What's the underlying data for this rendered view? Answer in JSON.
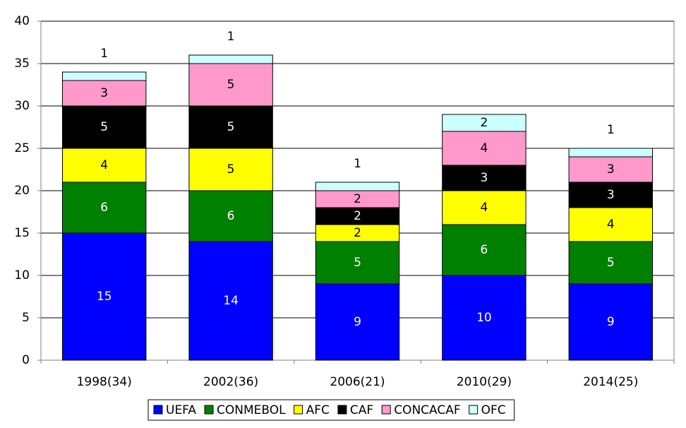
{
  "chart_data": {
    "type": "stacked_bar",
    "categories": [
      "1998(34)",
      "2002(36)",
      "2006(21)",
      "2010(29)",
      "2014(25)"
    ],
    "series": [
      {
        "name": "UEFA",
        "color": "#0000ff",
        "values": [
          15,
          14,
          9,
          10,
          9
        ]
      },
      {
        "name": "CONMEBOL",
        "color": "#008000",
        "values": [
          6,
          6,
          5,
          6,
          5
        ]
      },
      {
        "name": "AFC",
        "color": "#ffff00",
        "values": [
          4,
          5,
          2,
          4,
          4
        ]
      },
      {
        "name": "CAF",
        "color": "#000000",
        "values": [
          5,
          5,
          2,
          3,
          3
        ]
      },
      {
        "name": "CONCACAF",
        "color": "#ff99cc",
        "values": [
          3,
          5,
          2,
          4,
          3
        ]
      },
      {
        "name": "OFC",
        "color": "#ccffff",
        "values": [
          1,
          1,
          1,
          2,
          1
        ]
      }
    ],
    "ylim": [
      0,
      40
    ],
    "yticks": [
      0,
      5,
      10,
      15,
      20,
      25,
      30,
      35,
      40
    ],
    "grid": true,
    "legend": "bottom"
  }
}
